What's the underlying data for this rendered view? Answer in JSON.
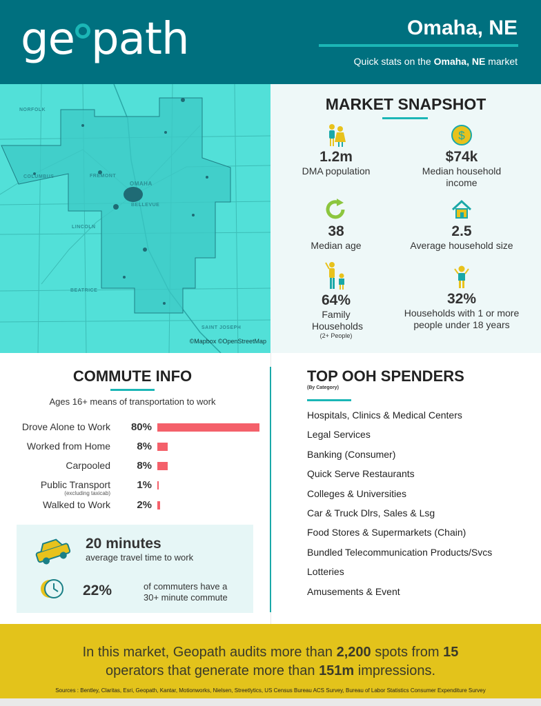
{
  "header": {
    "logo_text_left": "ge",
    "logo_text_right": "path",
    "city": "Omaha, NE",
    "subtitle_prefix": "Quick stats on the ",
    "subtitle_city": "Omaha, NE",
    "subtitle_suffix": " market"
  },
  "map": {
    "labels": {
      "norfolk": "NORFOLK",
      "columbus": "COLUMBUS",
      "fremont": "FREMONT",
      "omaha": "OMAHA",
      "bellevue": "BELLEVUE",
      "lincoln": "LINCOLN",
      "beatrice": "BEATRICE",
      "saint_joseph": "SAINT JOSEPH"
    },
    "credit": "©Mapbox ©OpenStreetMap",
    "colors": {
      "background": "#52e0d8",
      "region": "#3cc9c6",
      "outline": "#1f7f86"
    }
  },
  "snapshot": {
    "title": "MARKET SNAPSHOT",
    "stats": [
      {
        "icon": "people-icon",
        "value": "1.2m",
        "label": "DMA population"
      },
      {
        "icon": "dollar-coin-icon",
        "value": "$74k",
        "label": "Median household income"
      },
      {
        "icon": "circular-arrow-icon",
        "value": "38",
        "label": "Median age"
      },
      {
        "icon": "house-icon",
        "value": "2.5",
        "label": "Average household size"
      },
      {
        "icon": "family-icon",
        "value": "64%",
        "label": "Family Households",
        "note": "(2+ People)"
      },
      {
        "icon": "child-icon",
        "value": "32%",
        "label": "Households with 1 or more people under 18 years"
      }
    ]
  },
  "commute": {
    "title": "COMMUTE INFO",
    "tagline": "Ages 16+ means of transportation to work",
    "chart_data": {
      "type": "bar",
      "categories": [
        "Drove Alone to Work",
        "Worked from Home",
        "Carpooled",
        "Public Transport",
        "Walked to Work"
      ],
      "category_notes": [
        "",
        "",
        "",
        "(excluding taxicab)",
        ""
      ],
      "values": [
        80,
        8,
        8,
        1,
        2
      ],
      "value_labels": [
        "80%",
        "8%",
        "8%",
        "1%",
        "2%"
      ],
      "bar_color": "#f4606a"
    },
    "travel_time_value": "20 minutes",
    "travel_time_label": "average travel time to work",
    "long_commute_value": "22%",
    "long_commute_label": "of commuters have a 30+ minute commute"
  },
  "ooh": {
    "title": "TOP OOH SPENDERS",
    "subtitle": "(By Category)",
    "items": [
      "Hospitals, Clinics & Medical Centers",
      "Legal Services",
      "Banking (Consumer)",
      "Quick Serve Restaurants",
      "Colleges & Universities",
      "Car & Truck Dlrs, Sales & Lsg",
      "Food Stores & Supermarkets (Chain)",
      "Bundled Telecommunication Products/Svcs",
      "Lotteries",
      "Amusements & Event"
    ]
  },
  "footer": {
    "t1": "In this market, Geopath audits more than ",
    "spots": "2,200",
    "t2": " spots from ",
    "operators": "15",
    "t3": " operators that generate more than ",
    "impressions": "151m",
    "t4": " impressions.",
    "sources": "Sources : Bentley, Claritas, Esri, Geopath, Kantar, Motionworks, Nielsen, Streetlytics, US Census Bureau ACS Survey, Bureau of Labor Statistics Consumer Expenditure Survey"
  },
  "colors": {
    "header": "#00707f",
    "accent": "#1bb6b6",
    "footer": "#e3c31b",
    "icon_yellow": "#e8c21c",
    "icon_teal": "#1aa8a8"
  }
}
